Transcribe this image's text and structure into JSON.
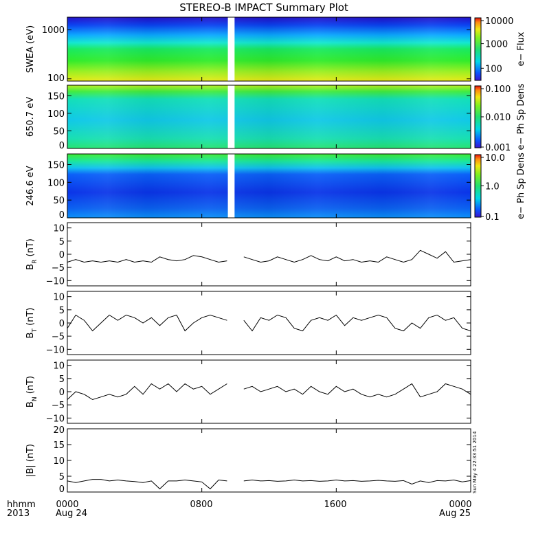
{
  "title": "STEREO-B IMPACT Summary Plot",
  "footer": {
    "left_label_1": "hhmm",
    "left_label_2": "2013",
    "x_ticks": [
      "0000",
      "0800",
      "1600",
      "0000"
    ],
    "x_dates": [
      "Aug 24",
      "",
      "",
      "Aug 25"
    ],
    "timestamp": "Sun May  4 22:33:51 2014"
  },
  "colors": {
    "trace": "#000000",
    "gap": "#ffffff"
  },
  "chart_data": [
    {
      "type": "heatmap",
      "ylabel": "SWEA (eV)",
      "yscale": "log",
      "ylim": [
        90,
        1800
      ],
      "y_ticks": [
        "1000",
        "100"
      ],
      "y_tick_values": [
        1000,
        100
      ],
      "colorbar": {
        "label": "e− Flux",
        "scale": "log",
        "ticks": [
          "10000",
          "1000",
          "100"
        ],
        "tick_values": [
          10000,
          1000,
          100
        ],
        "range": [
          30,
          12000
        ]
      },
      "data_gap_hours": [
        9.55,
        9.95
      ]
    },
    {
      "type": "heatmap",
      "ylabel": "650.7 eV",
      "ylim": [
        0,
        180
      ],
      "y_ticks": [
        "150",
        "100",
        "50",
        "0"
      ],
      "y_tick_values": [
        150,
        100,
        50,
        0
      ],
      "colorbar": {
        "label": "e− Ph Sp Dens",
        "scale": "log",
        "ticks": [
          "0.100",
          "0.010",
          "0.001"
        ],
        "tick_values": [
          0.1,
          0.01,
          0.001
        ],
        "range": [
          0.001,
          0.1
        ]
      },
      "data_gap_hours": [
        9.55,
        9.95
      ]
    },
    {
      "type": "heatmap",
      "ylabel": "246.6 eV",
      "ylim": [
        0,
        180
      ],
      "y_ticks": [
        "150",
        "100",
        "50",
        "0"
      ],
      "y_tick_values": [
        150,
        100,
        50,
        0
      ],
      "colorbar": {
        "label": "e− Ph Sp Dens",
        "scale": "log",
        "ticks": [
          "10.0",
          "1.0",
          "0.1"
        ],
        "tick_values": [
          10,
          1,
          0.1
        ],
        "range": [
          0.1,
          10
        ]
      },
      "data_gap_hours": [
        9.55,
        9.95
      ]
    },
    {
      "type": "line",
      "ylabel": "B_R (nT)",
      "ylabel_main": "B",
      "ylabel_sub": "R",
      "ylabel_unit": "(nT)",
      "ylim": [
        -12,
        12
      ],
      "y_ticks": [
        "10",
        "5",
        "0",
        "−5",
        "−10"
      ],
      "y_tick_values": [
        10,
        5,
        0,
        -5,
        -10
      ],
      "xlim_hours": [
        0,
        24
      ],
      "x": [
        0,
        0.5,
        1,
        1.5,
        2,
        2.5,
        3,
        3.5,
        4,
        4.5,
        5,
        5.5,
        6,
        6.5,
        7,
        7.5,
        8,
        8.5,
        9,
        9.5,
        10,
        10.5,
        11,
        11.5,
        12,
        12.5,
        13,
        13.5,
        14,
        14.5,
        15,
        15.5,
        16,
        16.5,
        17,
        17.5,
        18,
        18.5,
        19,
        19.5,
        20,
        20.5,
        21,
        21.5,
        22,
        22.5,
        23,
        23.5,
        24
      ],
      "values": [
        -3,
        -2,
        -3,
        -2.5,
        -3,
        -2.5,
        -3,
        -2,
        -3,
        -2.5,
        -3,
        -1,
        -2,
        -2.5,
        -2,
        -0.5,
        -1,
        -2,
        -3,
        -2.5,
        null,
        -1,
        -2,
        -3,
        -2.5,
        -1,
        -2,
        -3,
        -2,
        -0.5,
        -2,
        -2.5,
        -1,
        -2.5,
        -2,
        -3,
        -2.5,
        -3,
        -1,
        -2,
        -3,
        -2,
        1.5,
        0,
        -1.5,
        1,
        -3,
        -2.5,
        -2
      ]
    },
    {
      "type": "line",
      "ylabel": "B_T (nT)",
      "ylabel_main": "B",
      "ylabel_sub": "T",
      "ylabel_unit": "(nT)",
      "ylim": [
        -12,
        12
      ],
      "y_ticks": [
        "10",
        "5",
        "0",
        "−5",
        "−10"
      ],
      "y_tick_values": [
        10,
        5,
        0,
        -5,
        -10
      ],
      "xlim_hours": [
        0,
        24
      ],
      "x": [
        0,
        0.5,
        1,
        1.5,
        2,
        2.5,
        3,
        3.5,
        4,
        4.5,
        5,
        5.5,
        6,
        6.5,
        7,
        7.5,
        8,
        8.5,
        9,
        9.5,
        10,
        10.5,
        11,
        11.5,
        12,
        12.5,
        13,
        13.5,
        14,
        14.5,
        15,
        15.5,
        16,
        16.5,
        17,
        17.5,
        18,
        18.5,
        19,
        19.5,
        20,
        20.5,
        21,
        21.5,
        22,
        22.5,
        23,
        23.5,
        24
      ],
      "values": [
        -2,
        3,
        1,
        -3,
        0,
        3,
        1,
        3,
        2,
        0,
        2,
        -1,
        2,
        3,
        -3,
        0,
        2,
        3,
        2,
        1,
        null,
        1,
        -3,
        2,
        1,
        3,
        2,
        -2,
        -3,
        1,
        2,
        1,
        3,
        -1,
        2,
        1,
        2,
        3,
        2,
        -2,
        -3,
        0,
        -2,
        2,
        3,
        1,
        2,
        -2,
        -3
      ]
    },
    {
      "type": "line",
      "ylabel": "B_N (nT)",
      "ylabel_main": "B",
      "ylabel_sub": "N",
      "ylabel_unit": "(nT)",
      "ylim": [
        -12,
        12
      ],
      "y_ticks": [
        "10",
        "5",
        "0",
        "−5",
        "−10"
      ],
      "y_tick_values": [
        10,
        5,
        0,
        -5,
        -10
      ],
      "xlim_hours": [
        0,
        24
      ],
      "x": [
        0,
        0.5,
        1,
        1.5,
        2,
        2.5,
        3,
        3.5,
        4,
        4.5,
        5,
        5.5,
        6,
        6.5,
        7,
        7.5,
        8,
        8.5,
        9,
        9.5,
        10,
        10.5,
        11,
        11.5,
        12,
        12.5,
        13,
        13.5,
        14,
        14.5,
        15,
        15.5,
        16,
        16.5,
        17,
        17.5,
        18,
        18.5,
        19,
        19.5,
        20,
        20.5,
        21,
        21.5,
        22,
        22.5,
        23,
        23.5,
        24
      ],
      "values": [
        -3,
        0,
        -1,
        -3,
        -2,
        -1,
        -2,
        -1,
        2,
        -1,
        3,
        1,
        3,
        0,
        3,
        1,
        2,
        -1,
        1,
        3,
        null,
        1,
        2,
        0,
        1,
        2,
        0,
        1,
        -1,
        2,
        0,
        -1,
        2,
        0,
        1,
        -1,
        -2,
        -1,
        -2,
        -1,
        1,
        3,
        -2,
        -1,
        0,
        3,
        2,
        1,
        -1
      ]
    },
    {
      "type": "line",
      "ylabel": "|B| (nT)",
      "ylabel_main": "|B|",
      "ylabel_unit": "(nT)",
      "ylim": [
        0,
        20
      ],
      "y_ticks": [
        "20",
        "15",
        "10",
        "5",
        "0"
      ],
      "y_tick_values": [
        20,
        15,
        10,
        5,
        0
      ],
      "xlim_hours": [
        0,
        24
      ],
      "x": [
        0,
        0.5,
        1,
        1.5,
        2,
        2.5,
        3,
        3.5,
        4,
        4.5,
        5,
        5.5,
        6,
        6.5,
        7,
        7.5,
        8,
        8.5,
        9,
        9.5,
        10,
        10.5,
        11,
        11.5,
        12,
        12.5,
        13,
        13.5,
        14,
        14.5,
        15,
        15.5,
        16,
        16.5,
        17,
        17.5,
        18,
        18.5,
        19,
        19.5,
        20,
        20.5,
        21,
        21.5,
        22,
        22.5,
        23,
        23.5,
        24
      ],
      "values": [
        3.5,
        3,
        3.5,
        4,
        4,
        3.5,
        3.8,
        3.5,
        3.3,
        3,
        3.5,
        1,
        3.5,
        3.5,
        3.8,
        3.5,
        3.2,
        1,
        3.8,
        3.5,
        null,
        3.5,
        3.8,
        3.5,
        3.6,
        3.4,
        3.5,
        3.8,
        3.5,
        3.6,
        3.4,
        3.5,
        3.8,
        3.5,
        3.6,
        3.4,
        3.5,
        3.7,
        3.5,
        3.4,
        3.6,
        2.5,
        3.5,
        3,
        3.6,
        3.5,
        3.8,
        3.2,
        3.6
      ]
    }
  ]
}
